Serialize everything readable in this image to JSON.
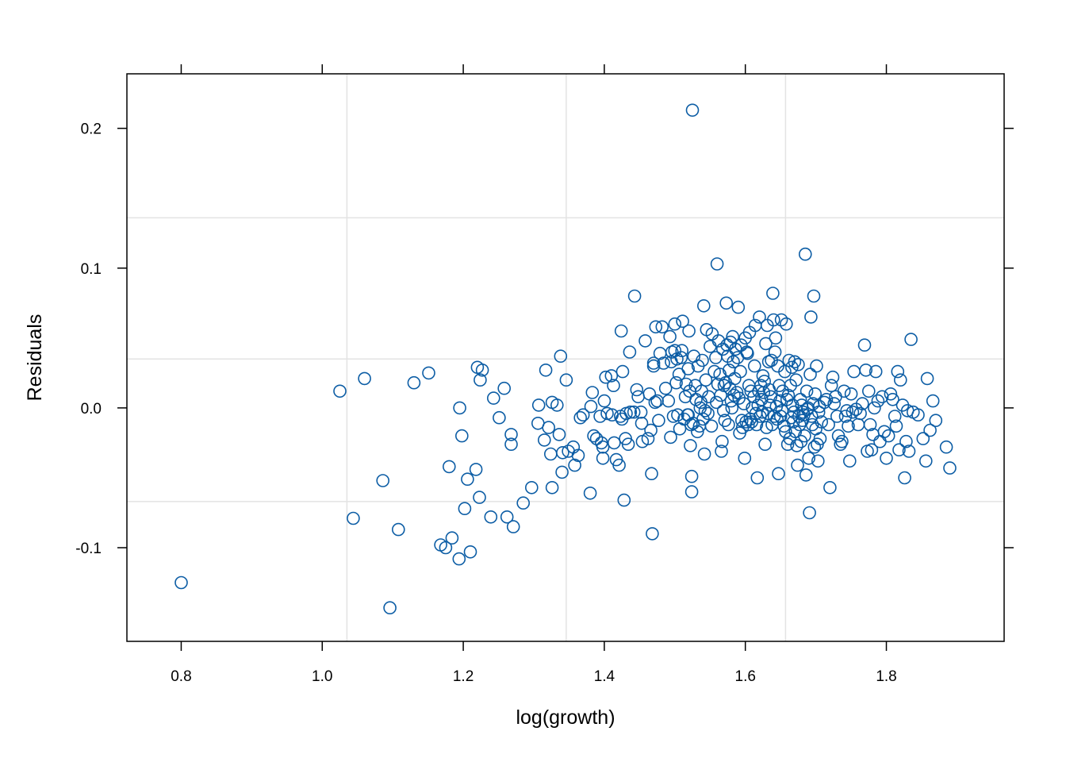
{
  "chart_data": {
    "type": "scatter",
    "xlabel": "log(growth)",
    "ylabel": "Residuals",
    "xlim": [
      0.723,
      1.967
    ],
    "ylim": [
      -0.167,
      0.239
    ],
    "x_ticks": [
      0.8,
      1.0,
      1.2,
      1.4,
      1.6,
      1.8
    ],
    "x_tick_labels": [
      "0.8",
      "1.0",
      "1.2",
      "1.4",
      "1.6",
      "1.8"
    ],
    "y_ticks": [
      -0.1,
      0.0,
      0.1,
      0.2
    ],
    "y_tick_labels": [
      "-0.1",
      "0.0",
      "0.1",
      "0.2"
    ],
    "reference_lines_x": [
      1.035,
      1.346,
      1.657
    ],
    "reference_lines_y": [
      -0.067,
      0.035,
      0.136
    ],
    "grid": true,
    "marker": "open-circle",
    "marker_color": "#0C5DA5",
    "frame_color": "#000000",
    "grid_color": "#E3E3E3",
    "points": [
      [
        0.8,
        -0.125
      ],
      [
        1.025,
        0.012
      ],
      [
        1.044,
        -0.079
      ],
      [
        1.06,
        0.021
      ],
      [
        1.086,
        -0.052
      ],
      [
        1.096,
        -0.143
      ],
      [
        1.108,
        -0.087
      ],
      [
        1.13,
        0.018
      ],
      [
        1.151,
        0.025
      ],
      [
        1.168,
        -0.098
      ],
      [
        1.175,
        -0.1
      ],
      [
        1.18,
        -0.042
      ],
      [
        1.184,
        -0.093
      ],
      [
        1.194,
        -0.108
      ],
      [
        1.195,
        0.0
      ],
      [
        1.198,
        -0.02
      ],
      [
        1.202,
        -0.072
      ],
      [
        1.206,
        -0.051
      ],
      [
        1.21,
        -0.103
      ],
      [
        1.218,
        -0.044
      ],
      [
        1.22,
        0.029
      ],
      [
        1.223,
        -0.064
      ],
      [
        1.224,
        0.02
      ],
      [
        1.227,
        0.027
      ],
      [
        1.239,
        -0.078
      ],
      [
        1.243,
        0.007
      ],
      [
        1.251,
        -0.007
      ],
      [
        1.258,
        0.014
      ],
      [
        1.262,
        -0.078
      ],
      [
        1.268,
        -0.019
      ],
      [
        1.268,
        -0.026
      ],
      [
        1.271,
        -0.085
      ],
      [
        1.285,
        -0.068
      ],
      [
        1.297,
        -0.057
      ],
      [
        1.306,
        -0.011
      ],
      [
        1.307,
        0.002
      ],
      [
        1.315,
        -0.023
      ],
      [
        1.317,
        0.027
      ],
      [
        1.321,
        -0.014
      ],
      [
        1.324,
        -0.033
      ],
      [
        1.326,
        0.004
      ],
      [
        1.326,
        -0.057
      ],
      [
        1.333,
        0.002
      ],
      [
        1.336,
        -0.019
      ],
      [
        1.338,
        0.037
      ],
      [
        1.34,
        -0.046
      ],
      [
        1.341,
        -0.032
      ],
      [
        1.346,
        0.02
      ],
      [
        1.349,
        -0.031
      ],
      [
        1.356,
        -0.028
      ],
      [
        1.358,
        -0.041
      ],
      [
        1.363,
        -0.034
      ],
      [
        1.366,
        -0.007
      ],
      [
        1.37,
        -0.005
      ],
      [
        1.38,
        -0.061
      ],
      [
        1.381,
        0.001
      ],
      [
        1.383,
        0.011
      ],
      [
        1.385,
        -0.02
      ],
      [
        1.389,
        -0.022
      ],
      [
        1.394,
        -0.006
      ],
      [
        1.396,
        -0.025
      ],
      [
        1.398,
        -0.036
      ],
      [
        1.398,
        -0.028
      ],
      [
        1.4,
        0.005
      ],
      [
        1.402,
        0.022
      ],
      [
        1.404,
        -0.004
      ],
      [
        1.41,
        0.023
      ],
      [
        1.411,
        -0.005
      ],
      [
        1.413,
        0.016
      ],
      [
        1.414,
        -0.025
      ],
      [
        1.417,
        -0.037
      ],
      [
        1.421,
        -0.041
      ],
      [
        1.423,
        -0.006
      ],
      [
        1.424,
        0.055
      ],
      [
        1.425,
        -0.008
      ],
      [
        1.426,
        0.026
      ],
      [
        1.428,
        -0.066
      ],
      [
        1.43,
        -0.022
      ],
      [
        1.431,
        -0.004
      ],
      [
        1.434,
        -0.026
      ],
      [
        1.436,
        0.04
      ],
      [
        1.437,
        -0.003
      ],
      [
        1.442,
        -0.003
      ],
      [
        1.443,
        0.08
      ],
      [
        1.446,
        0.013
      ],
      [
        1.448,
        0.008
      ],
      [
        1.452,
        -0.003
      ],
      [
        1.453,
        -0.011
      ],
      [
        1.454,
        -0.024
      ],
      [
        1.458,
        0.048
      ],
      [
        1.462,
        -0.022
      ],
      [
        1.464,
        0.01
      ],
      [
        1.466,
        -0.016
      ],
      [
        1.467,
        -0.047
      ],
      [
        1.468,
        -0.09
      ],
      [
        1.47,
        0.032
      ],
      [
        1.47,
        0.03
      ],
      [
        1.472,
        0.004
      ],
      [
        1.473,
        0.058
      ],
      [
        1.475,
        0.005
      ],
      [
        1.477,
        -0.009
      ],
      [
        1.479,
        0.039
      ],
      [
        1.482,
        0.058
      ],
      [
        1.484,
        0.032
      ],
      [
        1.487,
        0.014
      ],
      [
        1.491,
        0.005
      ],
      [
        1.493,
        0.051
      ],
      [
        1.494,
        -0.021
      ],
      [
        1.495,
        0.033
      ],
      [
        1.496,
        0.04
      ],
      [
        1.498,
        -0.006
      ],
      [
        1.5,
        0.041
      ],
      [
        1.5,
        0.06
      ],
      [
        1.502,
        0.018
      ],
      [
        1.503,
        0.035
      ],
      [
        1.504,
        -0.005
      ],
      [
        1.506,
        0.024
      ],
      [
        1.507,
        -0.015
      ],
      [
        1.509,
        0.036
      ],
      [
        1.51,
        0.041
      ],
      [
        1.511,
        0.062
      ],
      [
        1.513,
        -0.008
      ],
      [
        1.515,
        0.008
      ],
      [
        1.516,
        0.017
      ],
      [
        1.518,
        -0.005
      ],
      [
        1.519,
        -0.005
      ],
      [
        1.519,
        0.028
      ],
      [
        1.52,
        0.055
      ],
      [
        1.521,
        0.012
      ],
      [
        1.522,
        -0.027
      ],
      [
        1.523,
        -0.012
      ],
      [
        1.524,
        -0.06
      ],
      [
        1.524,
        -0.049
      ],
      [
        1.525,
        0.213
      ],
      [
        1.526,
        -0.011
      ],
      [
        1.527,
        0.037
      ],
      [
        1.529,
        0.016
      ],
      [
        1.53,
        0.006
      ],
      [
        1.532,
        -0.017
      ],
      [
        1.533,
        0.03
      ],
      [
        1.535,
        -0.013
      ],
      [
        1.536,
        0.0
      ],
      [
        1.537,
        0.004
      ],
      [
        1.538,
        0.012
      ],
      [
        1.539,
        0.034
      ],
      [
        1.54,
        -0.008
      ],
      [
        1.541,
        0.073
      ],
      [
        1.542,
        -0.033
      ],
      [
        1.543,
        -0.002
      ],
      [
        1.544,
        0.02
      ],
      [
        1.545,
        0.056
      ],
      [
        1.547,
        -0.004
      ],
      [
        1.548,
        0.008
      ],
      [
        1.55,
        0.044
      ],
      [
        1.552,
        -0.013
      ],
      [
        1.553,
        0.053
      ],
      [
        1.556,
        0.026
      ],
      [
        1.558,
        0.036
      ],
      [
        1.559,
        0.004
      ],
      [
        1.56,
        0.103
      ],
      [
        1.561,
        0.017
      ],
      [
        1.562,
        0.048
      ],
      [
        1.564,
        0.024
      ],
      [
        1.565,
        0.009
      ],
      [
        1.566,
        -0.031
      ],
      [
        1.567,
        -0.024
      ],
      [
        1.568,
        0.042
      ],
      [
        1.569,
        -0.002
      ],
      [
        1.57,
        0.016
      ],
      [
        1.571,
        -0.009
      ],
      [
        1.572,
        0.018
      ],
      [
        1.573,
        0.075
      ],
      [
        1.574,
        0.045
      ],
      [
        1.575,
        0.037
      ],
      [
        1.576,
        -0.012
      ],
      [
        1.577,
        0.027
      ],
      [
        1.578,
        0.014
      ],
      [
        1.579,
        0.047
      ],
      [
        1.58,
        0.005
      ],
      [
        1.581,
        0.0
      ],
      [
        1.582,
        0.051
      ],
      [
        1.583,
        0.033
      ],
      [
        1.584,
        0.009
      ],
      [
        1.585,
        0.021
      ],
      [
        1.586,
        0.042
      ],
      [
        1.588,
        0.011
      ],
      [
        1.589,
        0.036
      ],
      [
        1.59,
        0.072
      ],
      [
        1.591,
        0.007
      ],
      [
        1.592,
        -0.018
      ],
      [
        1.593,
        0.026
      ],
      [
        1.594,
        0.045
      ],
      [
        1.595,
        -0.009
      ],
      [
        1.596,
        -0.014
      ],
      [
        1.598,
        0.003
      ],
      [
        1.599,
        -0.036
      ],
      [
        1.6,
        0.05
      ],
      [
        1.601,
        -0.01
      ],
      [
        1.602,
        0.04
      ],
      [
        1.603,
        0.039
      ],
      [
        1.604,
        -0.012
      ],
      [
        1.605,
        0.016
      ],
      [
        1.606,
        0.054
      ],
      [
        1.607,
        -0.008
      ],
      [
        1.608,
        0.012
      ],
      [
        1.609,
        -0.01
      ],
      [
        1.61,
        0.0
      ],
      [
        1.612,
        0.008
      ],
      [
        1.613,
        0.03
      ],
      [
        1.614,
        0.059
      ],
      [
        1.615,
        -0.004
      ],
      [
        1.616,
        -0.012
      ],
      [
        1.617,
        -0.05
      ],
      [
        1.618,
        0.002
      ],
      [
        1.619,
        0.012
      ],
      [
        1.62,
        0.065
      ],
      [
        1.621,
        -0.006
      ],
      [
        1.622,
        0.016
      ],
      [
        1.623,
        0.006
      ],
      [
        1.624,
        -0.003
      ],
      [
        1.625,
        0.023
      ],
      [
        1.626,
        0.011
      ],
      [
        1.627,
        0.019
      ],
      [
        1.628,
        -0.026
      ],
      [
        1.629,
        0.046
      ],
      [
        1.63,
        -0.014
      ],
      [
        1.631,
        0.059
      ],
      [
        1.632,
        -0.004
      ],
      [
        1.633,
        0.033
      ],
      [
        1.634,
        0.013
      ],
      [
        1.635,
        0.002
      ],
      [
        1.636,
        0.008
      ],
      [
        1.637,
        0.034
      ],
      [
        1.638,
        -0.012
      ],
      [
        1.639,
        0.082
      ],
      [
        1.64,
        0.063
      ],
      [
        1.641,
        -0.006
      ],
      [
        1.642,
        0.04
      ],
      [
        1.643,
        0.05
      ],
      [
        1.644,
        0.001
      ],
      [
        1.645,
        -0.008
      ],
      [
        1.646,
        0.03
      ],
      [
        1.647,
        -0.047
      ],
      [
        1.648,
        0.016
      ],
      [
        1.649,
        0.005
      ],
      [
        1.65,
        -0.006
      ],
      [
        1.651,
        0.063
      ],
      [
        1.652,
        -0.002
      ],
      [
        1.653,
        0.012
      ],
      [
        1.655,
        -0.013
      ],
      [
        1.656,
        0.026
      ],
      [
        1.657,
        -0.017
      ],
      [
        1.658,
        0.06
      ],
      [
        1.659,
        0.006
      ],
      [
        1.66,
        -0.026
      ],
      [
        1.661,
        0.009
      ],
      [
        1.662,
        0.034
      ],
      [
        1.663,
        -0.022
      ],
      [
        1.664,
        0.016
      ],
      [
        1.665,
        -0.007
      ],
      [
        1.666,
        0.029
      ],
      [
        1.667,
        0.002
      ],
      [
        1.668,
        -0.01
      ],
      [
        1.669,
        -0.003
      ],
      [
        1.67,
        0.033
      ],
      [
        1.671,
        -0.017
      ],
      [
        1.672,
        0.02
      ],
      [
        1.673,
        -0.027
      ],
      [
        1.674,
        -0.041
      ],
      [
        1.675,
        0.031
      ],
      [
        1.676,
        -0.006
      ],
      [
        1.677,
        -0.012
      ],
      [
        1.678,
        0.006
      ],
      [
        1.679,
        -0.024
      ],
      [
        1.68,
        0.002
      ],
      [
        1.681,
        -0.009
      ],
      [
        1.682,
        -0.003
      ],
      [
        1.683,
        -0.005
      ],
      [
        1.684,
        -0.02
      ],
      [
        1.685,
        0.11
      ],
      [
        1.686,
        -0.048
      ],
      [
        1.687,
        0.012
      ],
      [
        1.688,
        -0.001
      ],
      [
        1.689,
        0.0
      ],
      [
        1.69,
        -0.036
      ],
      [
        1.691,
        -0.075
      ],
      [
        1.692,
        0.024
      ],
      [
        1.693,
        0.065
      ],
      [
        1.694,
        -0.006
      ],
      [
        1.695,
        -0.012
      ],
      [
        1.696,
        0.003
      ],
      [
        1.697,
        0.08
      ],
      [
        1.698,
        -0.028
      ],
      [
        1.699,
        0.01
      ],
      [
        1.7,
        -0.015
      ],
      [
        1.701,
        0.03
      ],
      [
        1.702,
        -0.026
      ],
      [
        1.703,
        -0.038
      ],
      [
        1.704,
        -0.003
      ],
      [
        1.705,
        0.001
      ],
      [
        1.706,
        -0.022
      ],
      [
        1.708,
        -0.01
      ],
      [
        1.712,
        0.004
      ],
      [
        1.715,
        0.006
      ],
      [
        1.718,
        -0.012
      ],
      [
        1.72,
        -0.057
      ],
      [
        1.722,
        0.016
      ],
      [
        1.724,
        0.022
      ],
      [
        1.726,
        0.003
      ],
      [
        1.728,
        0.008
      ],
      [
        1.73,
        -0.006
      ],
      [
        1.732,
        -0.02
      ],
      [
        1.735,
        -0.026
      ],
      [
        1.737,
        -0.024
      ],
      [
        1.74,
        0.012
      ],
      [
        1.742,
        -0.006
      ],
      [
        1.744,
        -0.002
      ],
      [
        1.746,
        -0.013
      ],
      [
        1.748,
        -0.038
      ],
      [
        1.75,
        0.01
      ],
      [
        1.752,
        -0.003
      ],
      [
        1.754,
        0.026
      ],
      [
        1.757,
        -0.001
      ],
      [
        1.76,
        -0.012
      ],
      [
        1.763,
        -0.004
      ],
      [
        1.766,
        0.003
      ],
      [
        1.769,
        0.045
      ],
      [
        1.771,
        0.027
      ],
      [
        1.773,
        -0.031
      ],
      [
        1.775,
        0.012
      ],
      [
        1.777,
        -0.012
      ],
      [
        1.779,
        -0.03
      ],
      [
        1.781,
        -0.019
      ],
      [
        1.783,
        0.0
      ],
      [
        1.785,
        0.026
      ],
      [
        1.788,
        0.005
      ],
      [
        1.791,
        -0.024
      ],
      [
        1.794,
        0.008
      ],
      [
        1.797,
        -0.017
      ],
      [
        1.8,
        -0.036
      ],
      [
        1.803,
        -0.02
      ],
      [
        1.806,
        0.01
      ],
      [
        1.809,
        0.006
      ],
      [
        1.812,
        -0.006
      ],
      [
        1.814,
        -0.013
      ],
      [
        1.816,
        0.026
      ],
      [
        1.818,
        -0.03
      ],
      [
        1.82,
        0.02
      ],
      [
        1.823,
        0.002
      ],
      [
        1.826,
        -0.05
      ],
      [
        1.828,
        -0.024
      ],
      [
        1.83,
        -0.002
      ],
      [
        1.832,
        -0.031
      ],
      [
        1.835,
        0.049
      ],
      [
        1.838,
        -0.003
      ],
      [
        1.845,
        -0.005
      ],
      [
        1.852,
        -0.022
      ],
      [
        1.856,
        -0.038
      ],
      [
        1.858,
        0.021
      ],
      [
        1.862,
        -0.016
      ],
      [
        1.866,
        0.005
      ],
      [
        1.87,
        -0.009
      ],
      [
        1.885,
        -0.028
      ],
      [
        1.89,
        -0.043
      ]
    ]
  }
}
